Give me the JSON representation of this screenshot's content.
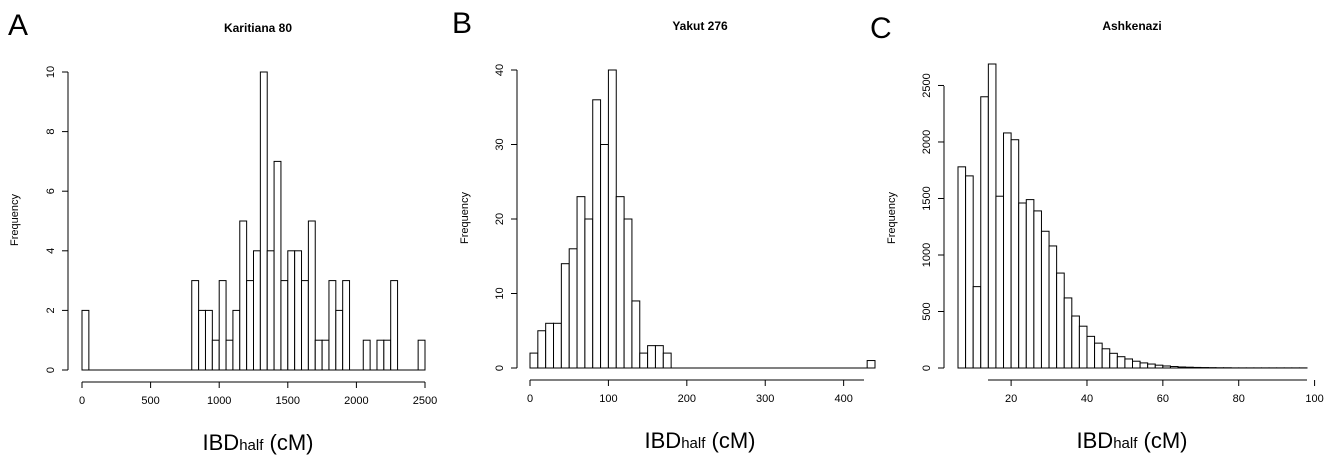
{
  "chart_data": [
    {
      "type": "bar",
      "panel_label": "A",
      "title": "Karitiana 80",
      "ylabel": "Frequency",
      "xlabel_main": "IBD",
      "xlabel_sub": "half",
      "xlabel_tail": " (cM)",
      "bin_width": 50,
      "bin_starts": [
        0,
        800,
        850,
        900,
        950,
        1000,
        1050,
        1100,
        1150,
        1200,
        1250,
        1300,
        1350,
        1400,
        1450,
        1500,
        1550,
        1600,
        1650,
        1700,
        1750,
        1800,
        1850,
        1900,
        2050,
        2150,
        2200,
        2250,
        2450
      ],
      "values": [
        2,
        3,
        2,
        2,
        1,
        3,
        1,
        2,
        5,
        3,
        4,
        10,
        4,
        7,
        3,
        4,
        4,
        3,
        5,
        1,
        1,
        3,
        2,
        3,
        1,
        1,
        1,
        3,
        1
      ],
      "xlim": [
        0,
        2500
      ],
      "ylim": [
        0,
        10
      ],
      "xticks": [
        0,
        500,
        1000,
        1500,
        2000,
        2500
      ],
      "yticks": [
        0,
        2,
        4,
        6,
        8,
        10
      ]
    },
    {
      "type": "bar",
      "panel_label": "B",
      "title": "Yakut 276",
      "ylabel": "Frequency",
      "xlabel_main": "IBD",
      "xlabel_sub": "half",
      "xlabel_tail": " (cM)",
      "bin_width": 10,
      "bin_starts": [
        0,
        10,
        20,
        30,
        40,
        50,
        60,
        70,
        80,
        90,
        100,
        110,
        120,
        130,
        140,
        150,
        160,
        170,
        180,
        430
      ],
      "values": [
        2,
        5,
        6,
        6,
        14,
        16,
        23,
        20,
        36,
        30,
        40,
        23,
        20,
        9,
        2,
        3,
        3,
        2,
        0,
        1
      ],
      "xlim": [
        0,
        440
      ],
      "ylim": [
        0,
        40
      ],
      "xticks": [
        0,
        100,
        200,
        300,
        400
      ],
      "yticks": [
        0,
        10,
        20,
        30,
        40
      ]
    },
    {
      "type": "bar",
      "panel_label": "C",
      "title": "Ashkenazi",
      "ylabel": "Frequency",
      "xlabel_main": "IBD",
      "xlabel_sub": "half",
      "xlabel_tail": " (cM)",
      "bin_width": 2,
      "bin_starts": [
        6,
        8,
        10,
        12,
        14,
        16,
        18,
        20,
        22,
        24,
        26,
        28,
        30,
        32,
        34,
        36,
        38,
        40,
        42,
        44,
        46,
        48,
        50,
        52,
        54,
        56,
        58,
        60,
        62,
        64,
        66,
        68,
        70,
        72,
        74,
        76,
        78,
        80,
        82,
        84,
        86,
        88,
        90,
        92,
        94,
        96
      ],
      "values": [
        1780,
        1700,
        720,
        2400,
        2690,
        1520,
        2080,
        2020,
        1460,
        1490,
        1390,
        1210,
        1080,
        840,
        620,
        460,
        370,
        280,
        220,
        170,
        130,
        100,
        80,
        60,
        45,
        35,
        25,
        18,
        13,
        9,
        7,
        5,
        4,
        3,
        2,
        2,
        1,
        1,
        1,
        1,
        1,
        1,
        1,
        1,
        1,
        1
      ],
      "xlim": [
        6,
        98
      ],
      "ylim": [
        0,
        2690
      ],
      "xticks": [
        20,
        40,
        60,
        80,
        100
      ],
      "yticks": [
        0,
        500,
        1000,
        1500,
        2000,
        2500
      ]
    }
  ]
}
